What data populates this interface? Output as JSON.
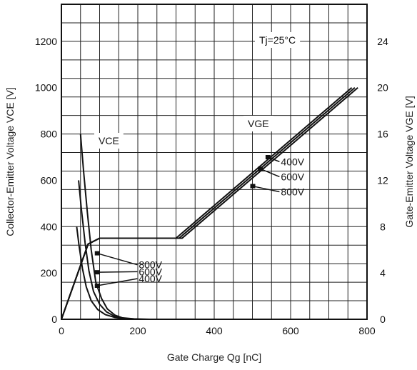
{
  "chart_data": {
    "type": "line",
    "xlabel": "Gate Charge Qg [nC]",
    "ylabel": "Collector-Emitter Voltage VCE [V]",
    "y2label": "Gate-Emitter Voltage VGE [V]",
    "xlim": [
      0,
      800
    ],
    "ylim": [
      0,
      1360
    ],
    "y2lim": [
      0,
      27.2
    ],
    "x_ticks": [
      "0",
      "200",
      "400",
      "600",
      "800"
    ],
    "y_ticks": [
      "0",
      "200",
      "400",
      "600",
      "800",
      "1000",
      "1200"
    ],
    "y2_ticks": [
      "0",
      "4",
      "8",
      "12",
      "16",
      "20",
      "24"
    ],
    "grid": true,
    "condition_label": "Tj=25°C",
    "vce_label": "VCE",
    "vge_label": "VGE",
    "vce_series": [
      {
        "name": "800V",
        "x": [
          50,
          58,
          68,
          78,
          90,
          105,
          120,
          140,
          160,
          190,
          230,
          800
        ],
        "y": [
          800,
          640,
          460,
          300,
          160,
          90,
          45,
          18,
          6,
          2,
          0,
          0
        ]
      },
      {
        "name": "600V",
        "x": [
          45,
          52,
          62,
          72,
          84,
          100,
          118,
          140,
          165,
          200,
          800
        ],
        "y": [
          600,
          480,
          330,
          210,
          120,
          65,
          32,
          12,
          4,
          0,
          0
        ]
      },
      {
        "name": "400V",
        "x": [
          40,
          46,
          55,
          65,
          78,
          95,
          115,
          140,
          170,
          200,
          800
        ],
        "y": [
          400,
          320,
          220,
          140,
          80,
          42,
          20,
          8,
          2,
          0,
          0
        ]
      }
    ],
    "vge_series": [
      {
        "name": "400V",
        "x": [
          0,
          70,
          100,
          200,
          300,
          760
        ],
        "y": [
          0,
          6.5,
          7.0,
          7.0,
          7.0,
          20.0
        ]
      },
      {
        "name": "600V",
        "x": [
          0,
          70,
          100,
          200,
          308,
          768
        ],
        "y": [
          0,
          6.5,
          7.0,
          7.0,
          7.0,
          20.0
        ]
      },
      {
        "name": "800V",
        "x": [
          0,
          70,
          100,
          200,
          316,
          776
        ],
        "y": [
          0,
          6.5,
          7.0,
          7.0,
          7.0,
          20.0
        ]
      }
    ],
    "annotations": [
      {
        "label": "800V",
        "point_x": 93,
        "point_y": 285,
        "label_x": 195,
        "label_y": 220
      },
      {
        "label": "600V",
        "point_x": 93,
        "point_y": 203,
        "label_x": 195,
        "label_y": 190
      },
      {
        "label": "400V",
        "point_x": 93,
        "point_y": 145,
        "label_x": 195,
        "label_y": 160
      },
      {
        "label": "400V",
        "point_x": 540,
        "point_y": 14.0,
        "label_x": 612,
        "label_y": 13.3
      },
      {
        "label": "600V",
        "point_x": 520,
        "point_y": 13.0,
        "label_x": 612,
        "label_y": 12.0
      },
      {
        "label": "800V",
        "point_x": 500,
        "point_y": 11.5,
        "label_x": 612,
        "label_y": 10.7
      }
    ]
  }
}
